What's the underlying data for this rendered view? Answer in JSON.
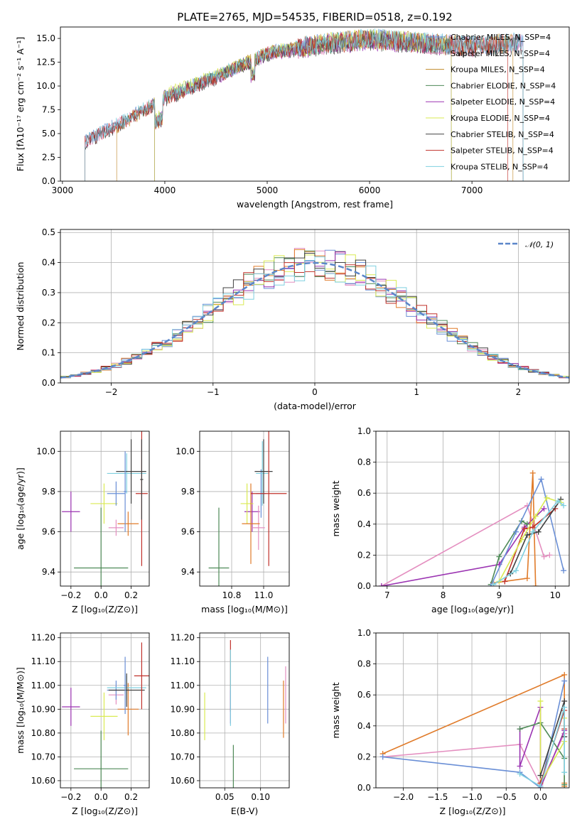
{
  "chart_data": [
    {
      "id": "spectrum",
      "type": "line",
      "title": "PLATE=2765, MJD=54535, FIBERID=0518, z=0.192",
      "xlabel": "wavelength [Angstrom, rest frame]",
      "ylabel": "Flux [fλ10⁻¹⁷ erg cm⁻² s⁻¹ A⁻¹]",
      "xlim": [
        2980,
        7950
      ],
      "ylim": [
        0,
        16.2
      ],
      "xticks": [
        3000,
        4000,
        5000,
        6000,
        7000
      ],
      "yticks": [
        0.0,
        2.5,
        5.0,
        7.5,
        10.0,
        12.5,
        15.0
      ],
      "grid": false,
      "legend_position": "top-right",
      "series": [
        {
          "name": "Chabrier MILES, N_SSP=4",
          "color": "#6a8fd6",
          "x": [
            3220,
            3500,
            4000,
            4500,
            5000,
            5500,
            6000,
            6500,
            7000,
            7500
          ],
          "y": [
            4.2,
            5.8,
            8.8,
            11.0,
            13.5,
            14.4,
            15.0,
            14.6,
            14.2,
            14.6
          ]
        },
        {
          "name": "Salpeter MILES, N_SSP=4",
          "color": "#e48fc0",
          "x": [
            3220,
            3500,
            4000,
            4500,
            5000,
            5500,
            6000,
            6500,
            7000,
            7500
          ],
          "y": [
            4.1,
            5.7,
            8.6,
            10.9,
            13.4,
            14.3,
            14.9,
            14.5,
            14.1,
            14.5
          ]
        },
        {
          "name": "Kroupa MILES, N_SSP=4",
          "color": "#c08a2a",
          "x": [
            3530,
            4000,
            4500,
            5000,
            5500,
            6000,
            6500,
            7000,
            7400
          ],
          "y": [
            5.7,
            8.7,
            11.0,
            13.5,
            14.4,
            15.0,
            14.6,
            14.2,
            14.5
          ]
        },
        {
          "name": "Chabrier ELODIE, N_SSP=4",
          "color": "#4e8a57",
          "x": [
            3900,
            4000,
            4500,
            5000,
            5500,
            6000,
            6500,
            6800
          ],
          "y": [
            8.5,
            9.0,
            11.0,
            13.4,
            14.3,
            14.9,
            14.5,
            14.2
          ]
        },
        {
          "name": "Salpeter ELODIE, N_SSP=4",
          "color": "#9b34b2",
          "x": [
            3900,
            4000,
            4500,
            5000,
            5500,
            6000,
            6500,
            6800
          ],
          "y": [
            8.4,
            8.9,
            10.9,
            13.3,
            14.2,
            14.8,
            14.4,
            14.1
          ]
        },
        {
          "name": "Kroupa ELODIE, N_SSP=4",
          "color": "#d9ea52",
          "x": [
            3900,
            4000,
            4500,
            5000,
            5500,
            6000,
            6500,
            6800
          ],
          "y": [
            8.6,
            9.1,
            11.1,
            13.5,
            14.4,
            15.0,
            14.6,
            14.3
          ]
        },
        {
          "name": "Chabrier STELIB, N_SSP=4",
          "color": "#404040",
          "x": [
            3220,
            3500,
            4000,
            4500,
            5000,
            5500,
            6000,
            6500,
            7000,
            7500
          ],
          "y": [
            4.0,
            5.6,
            8.5,
            10.8,
            13.3,
            14.2,
            14.8,
            14.4,
            14.0,
            14.4
          ]
        },
        {
          "name": "Salpeter STELIB, N_SSP=4",
          "color": "#c0302a",
          "x": [
            3220,
            3500,
            4000,
            4500,
            5000,
            5500,
            6000,
            6500,
            7000,
            7350
          ],
          "y": [
            4.1,
            5.7,
            8.6,
            10.9,
            13.4,
            14.3,
            14.9,
            14.5,
            14.1,
            14.4
          ]
        },
        {
          "name": "Kroupa STELIB, N_SSP=4",
          "color": "#7fd0e0",
          "x": [
            3220,
            3500,
            4000,
            4500,
            5000,
            5500,
            6000,
            6500,
            7000,
            7500
          ],
          "y": [
            4.2,
            5.8,
            8.8,
            11.0,
            13.5,
            14.4,
            15.0,
            14.6,
            14.2,
            14.6
          ]
        }
      ]
    },
    {
      "id": "residuals",
      "type": "line",
      "xlabel": "(data-model)/error",
      "ylabel": "Normed distribution",
      "xlim": [
        -2.5,
        2.5
      ],
      "ylim": [
        0,
        0.51
      ],
      "xticks": [
        -2,
        -1,
        0,
        1,
        2
      ],
      "yticks": [
        0.0,
        0.1,
        0.2,
        0.3,
        0.4,
        0.5
      ],
      "grid": true,
      "legend": "𝒩(0, 1)",
      "legend_position": "top-right",
      "reference_curve": {
        "name": "N(0,1)",
        "color": "#5b86c9",
        "mu": 0,
        "sigma": 1
      },
      "histogram_bins": {
        "start": -2.5,
        "width": 0.1,
        "count": 50
      }
    },
    {
      "id": "age-vs-z",
      "type": "scatter",
      "xlabel": "Z [log₁₀(Z/Z⊙)]",
      "ylabel": "age  [log₁₀(age/yr)]",
      "xlim": [
        -0.27,
        0.32
      ],
      "ylim": [
        9.33,
        10.1
      ],
      "xticks": [
        -0.2,
        0.0,
        0.2
      ],
      "yticks": [
        9.4,
        9.6,
        9.8,
        10.0
      ],
      "grid": true,
      "points": [
        {
          "x": 0.0,
          "y": 9.42,
          "xerr": 0.18,
          "yerr": 0.3,
          "color": "#4e8a57"
        },
        {
          "x": -0.2,
          "y": 9.7,
          "xerr": 0.06,
          "yerr": 0.1,
          "color": "#9b34b2"
        },
        {
          "x": 0.02,
          "y": 9.74,
          "xerr": 0.09,
          "yerr": 0.1,
          "color": "#d9ea52"
        },
        {
          "x": 0.1,
          "y": 9.79,
          "xerr": 0.06,
          "yerr": 0.06,
          "color": "#6a8fd6"
        },
        {
          "x": 0.1,
          "y": 9.62,
          "xerr": 0.05,
          "yerr": 0.04,
          "color": "#e48fc0"
        },
        {
          "x": 0.18,
          "y": 9.64,
          "xerr": 0.07,
          "yerr": 0.06,
          "color": "#e07b2a"
        },
        {
          "x": 0.17,
          "y": 9.89,
          "xerr": 0.13,
          "yerr": 0.1,
          "color": "#7fd0e0"
        },
        {
          "x": 0.2,
          "y": 9.9,
          "xerr": 0.1,
          "yerr": 0.16,
          "color": "#404040"
        },
        {
          "x": 0.27,
          "y": 9.79,
          "xerr": 0.04,
          "yerr": 0.36,
          "color": "#c0302a"
        },
        {
          "x": 0.16,
          "y": 9.8,
          "xerr": 0.01,
          "yerr": 0.2,
          "color": "#6a8fd6"
        },
        {
          "x": 0.27,
          "y": 9.86,
          "xerr": 0.01,
          "yerr": 0.2,
          "color": "#404040"
        }
      ]
    },
    {
      "id": "age-vs-mass",
      "type": "scatter",
      "xlabel": "mass [log₁₀(M/M⊙)]",
      "ylabel": "",
      "xlim": [
        10.5,
        11.2
      ],
      "ylim": [
        9.33,
        10.1
      ],
      "xticks": [
        10.75,
        11.0
      ],
      "yticks": [
        9.4,
        9.6,
        9.8,
        10.0
      ],
      "grid": true,
      "points": [
        {
          "x": 10.65,
          "y": 9.42,
          "xerr": 0.08,
          "yerr": 0.3,
          "color": "#4e8a57"
        },
        {
          "x": 10.91,
          "y": 9.7,
          "xerr": 0.06,
          "yerr": 0.1,
          "color": "#9b34b2"
        },
        {
          "x": 10.87,
          "y": 9.74,
          "xerr": 0.05,
          "yerr": 0.1,
          "color": "#d9ea52"
        },
        {
          "x": 10.96,
          "y": 9.62,
          "xerr": 0.05,
          "yerr": 0.11,
          "color": "#e48fc0"
        },
        {
          "x": 10.9,
          "y": 9.64,
          "xerr": 0.07,
          "yerr": 0.2,
          "color": "#e07b2a"
        },
        {
          "x": 10.98,
          "y": 9.79,
          "xerr": 0.04,
          "yerr": 0.12,
          "color": "#6a8fd6"
        },
        {
          "x": 10.99,
          "y": 9.89,
          "xerr": 0.05,
          "yerr": 0.16,
          "color": "#7fd0e0"
        },
        {
          "x": 11.0,
          "y": 9.9,
          "xerr": 0.07,
          "yerr": 0.16,
          "color": "#404040"
        },
        {
          "x": 11.04,
          "y": 9.79,
          "xerr": 0.14,
          "yerr": 0.36,
          "color": "#c0302a"
        }
      ]
    },
    {
      "id": "weight-vs-age",
      "type": "line",
      "xlabel": "age  [log₁₀(age/yr)]",
      "ylabel": "mass weight",
      "xlim": [
        6.8,
        10.25
      ],
      "ylim": [
        0,
        1
      ],
      "xticks": [
        7,
        8,
        9,
        10
      ],
      "yticks": [
        0.0,
        0.2,
        0.4,
        0.6,
        0.8,
        1.0
      ],
      "grid": true,
      "series": [
        {
          "color": "#e48fc0",
          "x": [
            6.9,
            9.5,
            9.8,
            9.9
          ],
          "y": [
            0.0,
            0.52,
            0.19,
            0.2
          ]
        },
        {
          "color": "#9b34b2",
          "x": [
            6.9,
            9.0,
            9.45,
            9.8
          ],
          "y": [
            0.0,
            0.14,
            0.38,
            0.5
          ]
        },
        {
          "color": "#4e8a57",
          "x": [
            8.85,
            9.0,
            9.4,
            9.5
          ],
          "y": [
            0.01,
            0.19,
            0.42,
            0.4
          ]
        },
        {
          "color": "#e07b2a",
          "x": [
            8.9,
            9.5,
            9.6,
            9.65
          ],
          "y": [
            0.02,
            0.05,
            0.73,
            0.0
          ]
        },
        {
          "color": "#6a8fd6",
          "x": [
            8.85,
            9.3,
            9.75,
            10.15
          ],
          "y": [
            0.0,
            0.35,
            0.69,
            0.1
          ]
        },
        {
          "color": "#c0302a",
          "x": [
            9.1,
            9.45,
            9.6,
            10.0
          ],
          "y": [
            0.03,
            0.37,
            0.38,
            0.5
          ]
        },
        {
          "color": "#404040",
          "x": [
            9.2,
            9.5,
            9.7,
            10.1
          ],
          "y": [
            0.08,
            0.33,
            0.35,
            0.56
          ]
        },
        {
          "color": "#d9ea52",
          "x": [
            9.0,
            9.4,
            9.65,
            9.85,
            10.1
          ],
          "y": [
            0.03,
            0.3,
            0.45,
            0.57,
            0.54
          ]
        },
        {
          "color": "#7fd0e0",
          "x": [
            8.9,
            9.3,
            9.6,
            10.05,
            10.15
          ],
          "y": [
            0.01,
            0.1,
            0.35,
            0.55,
            0.52
          ]
        }
      ]
    },
    {
      "id": "mass-vs-z",
      "type": "scatter",
      "xlabel": "Z [log₁₀(Z/Z⊙)]",
      "ylabel": "mass [log₁₀(M/M⊙)]",
      "xlim": [
        -0.27,
        0.32
      ],
      "ylim": [
        10.57,
        11.22
      ],
      "xticks": [
        -0.2,
        0.0,
        0.2
      ],
      "yticks": [
        10.6,
        10.7,
        10.8,
        10.9,
        11.0,
        11.1,
        11.2
      ],
      "grid": true,
      "points": [
        {
          "x": 0.0,
          "y": 10.65,
          "xerr": 0.18,
          "yerr": 0.16,
          "color": "#4e8a57"
        },
        {
          "x": -0.2,
          "y": 10.91,
          "xerr": 0.06,
          "yerr": 0.08,
          "color": "#9b34b2"
        },
        {
          "x": 0.02,
          "y": 10.87,
          "xerr": 0.09,
          "yerr": 0.1,
          "color": "#d9ea52"
        },
        {
          "x": 0.1,
          "y": 10.96,
          "xerr": 0.05,
          "yerr": 0.04,
          "color": "#e48fc0"
        },
        {
          "x": 0.18,
          "y": 10.9,
          "xerr": 0.07,
          "yerr": 0.11,
          "color": "#e07b2a"
        },
        {
          "x": 0.1,
          "y": 10.98,
          "xerr": 0.06,
          "yerr": 0.04,
          "color": "#6a8fd6"
        },
        {
          "x": 0.17,
          "y": 10.99,
          "xerr": 0.13,
          "yerr": 0.05,
          "color": "#7fd0e0"
        },
        {
          "x": 0.17,
          "y": 10.98,
          "xerr": 0.12,
          "yerr": 0.07,
          "color": "#404040"
        },
        {
          "x": 0.27,
          "y": 11.04,
          "xerr": 0.05,
          "yerr": 0.14,
          "color": "#c0302a"
        },
        {
          "x": 0.16,
          "y": 11.0,
          "xerr": 0.01,
          "yerr": 0.12,
          "color": "#6a8fd6"
        }
      ]
    },
    {
      "id": "mass-vs-ebv",
      "type": "scatter",
      "xlabel": "E(B-V)",
      "ylabel": "",
      "xlim": [
        0.015,
        0.14
      ],
      "ylim": [
        10.57,
        11.22
      ],
      "xticks": [
        0.05,
        0.1
      ],
      "yticks": [
        10.6,
        10.7,
        10.8,
        10.9,
        11.0,
        11.1,
        11.2
      ],
      "grid": true,
      "points": [
        {
          "x": 0.022,
          "y": 10.87,
          "xerr": 0.0,
          "yerr": 0.1,
          "color": "#d9ea52"
        },
        {
          "x": 0.058,
          "y": 11.04,
          "xerr": 0.0,
          "yerr": 0.15,
          "color": "#c0302a"
        },
        {
          "x": 0.058,
          "y": 10.91,
          "xerr": 0.0,
          "yerr": 0.07,
          "color": "#9b34b2"
        },
        {
          "x": 0.058,
          "y": 10.99,
          "xerr": 0.0,
          "yerr": 0.16,
          "color": "#7fd0e0"
        },
        {
          "x": 0.062,
          "y": 10.65,
          "xerr": 0.0,
          "yerr": 0.1,
          "color": "#4e8a57"
        },
        {
          "x": 0.11,
          "y": 10.98,
          "xerr": 0.0,
          "yerr": 0.14,
          "color": "#6a8fd6"
        },
        {
          "x": 0.132,
          "y": 10.9,
          "xerr": 0.0,
          "yerr": 0.12,
          "color": "#e07b2a"
        },
        {
          "x": 0.135,
          "y": 10.96,
          "xerr": 0.0,
          "yerr": 0.12,
          "color": "#e48fc0"
        }
      ]
    },
    {
      "id": "weight-vs-z",
      "type": "line",
      "xlabel": "Z [log₁₀(Z/Z⊙)]",
      "ylabel": "mass weight",
      "xlim": [
        -2.4,
        0.42
      ],
      "ylim": [
        0,
        1
      ],
      "xticks": [
        -2.0,
        -1.5,
        -1.0,
        -0.5,
        0.0
      ],
      "yticks": [
        0.0,
        0.2,
        0.4,
        0.6,
        0.8,
        1.0
      ],
      "grid": true,
      "series": [
        {
          "color": "#e07b2a",
          "x": [
            -2.3,
            0.35,
            0.35,
            0.35
          ],
          "y": [
            0.22,
            0.73,
            0.03,
            0.01
          ]
        },
        {
          "color": "#e48fc0",
          "x": [
            -2.3,
            -0.3,
            0.0,
            0.35
          ],
          "y": [
            0.2,
            0.28,
            0.02,
            0.35
          ]
        },
        {
          "color": "#6a8fd6",
          "x": [
            -2.3,
            -0.3,
            0.0,
            0.35
          ],
          "y": [
            0.2,
            0.1,
            0.0,
            0.69
          ]
        },
        {
          "color": "#9b34b2",
          "x": [
            -0.3,
            -0.3,
            0.0,
            0.0,
            0.35
          ],
          "y": [
            0.38,
            0.14,
            0.52,
            0.0,
            0.37
          ]
        },
        {
          "color": "#4e8a57",
          "x": [
            -0.3,
            0.0,
            0.35,
            0.35
          ],
          "y": [
            0.38,
            0.42,
            0.19,
            0.02
          ]
        },
        {
          "color": "#d9ea52",
          "x": [
            0.0,
            0.0,
            0.35,
            0.35
          ],
          "y": [
            0.56,
            0.03,
            0.3,
            0.45
          ]
        },
        {
          "color": "#c0302a",
          "x": [
            0.0,
            0.35,
            0.35
          ],
          "y": [
            0.03,
            0.5,
            0.38
          ]
        },
        {
          "color": "#404040",
          "x": [
            0.0,
            0.35,
            0.35
          ],
          "y": [
            0.08,
            0.56,
            0.33
          ]
        },
        {
          "color": "#7fd0e0",
          "x": [
            -0.3,
            0.0,
            0.35,
            0.35
          ],
          "y": [
            0.09,
            0.01,
            0.52,
            0.1
          ]
        }
      ]
    }
  ]
}
